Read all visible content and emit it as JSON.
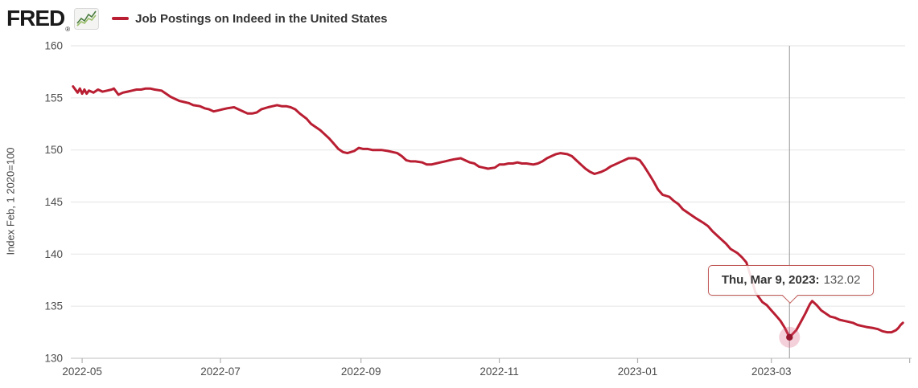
{
  "header": {
    "logo_text": "FRED",
    "registered_mark": "®",
    "legend": {
      "label": "Job Postings on Indeed in the United States"
    }
  },
  "y_axis": {
    "title": "Index Feb, 1 2020=100",
    "ticks": [
      130,
      135,
      140,
      145,
      150,
      155,
      160
    ]
  },
  "x_axis": {
    "ticks": [
      {
        "label": "2022-05",
        "date": "2022-05-01"
      },
      {
        "label": "2022-07",
        "date": "2022-07-01"
      },
      {
        "label": "2022-09",
        "date": "2022-09-01"
      },
      {
        "label": "2022-11",
        "date": "2022-11-01"
      },
      {
        "label": "2023-01",
        "date": "2023-01-01"
      },
      {
        "label": "2023-03",
        "date": "2023-03-01"
      },
      {
        "label": "",
        "date": "2023-05-01"
      }
    ]
  },
  "tooltip": {
    "date_label": "Thu, Mar 9, 2023:",
    "value": "132.02",
    "date": "2023-03-09"
  },
  "colors": {
    "line": "#b91e32",
    "dot": "#96152c",
    "halo": "rgba(214,88,122,0.28)",
    "grid": "#e8e8e8",
    "axis_line": "#cccccc",
    "tick": "#b0b0b0",
    "crosshair": "#a8a8a8",
    "tick_text": "#4d4d4d",
    "tooltip_border": "#c05a58"
  },
  "chart_data": {
    "type": "line",
    "title": "Job Postings on Indeed in the United States",
    "xlabel": "",
    "ylabel": "Index Feb, 1 2020=100",
    "ylim": [
      130,
      160
    ],
    "x_start": "2022-04-26",
    "x_end": "2023-04-29",
    "grid": true,
    "legend_position": "top-left",
    "marked_point": {
      "date": "2023-03-09",
      "value": 132.02
    },
    "series_name": "Job Postings on Indeed in the United States",
    "points": [
      [
        "2022-04-27",
        156.1
      ],
      [
        "2022-04-29",
        155.5
      ],
      [
        "2022-04-30",
        155.9
      ],
      [
        "2022-05-01",
        155.4
      ],
      [
        "2022-05-02",
        155.8
      ],
      [
        "2022-05-03",
        155.4
      ],
      [
        "2022-05-04",
        155.7
      ],
      [
        "2022-05-06",
        155.5
      ],
      [
        "2022-05-08",
        155.8
      ],
      [
        "2022-05-10",
        155.6
      ],
      [
        "2022-05-12",
        155.7
      ],
      [
        "2022-05-14",
        155.8
      ],
      [
        "2022-05-15",
        155.9
      ],
      [
        "2022-05-17",
        155.3
      ],
      [
        "2022-05-19",
        155.5
      ],
      [
        "2022-05-21",
        155.6
      ],
      [
        "2022-05-23",
        155.7
      ],
      [
        "2022-05-25",
        155.8
      ],
      [
        "2022-05-27",
        155.8
      ],
      [
        "2022-05-29",
        155.9
      ],
      [
        "2022-05-31",
        155.9
      ],
      [
        "2022-06-02",
        155.8
      ],
      [
        "2022-06-05",
        155.7
      ],
      [
        "2022-06-07",
        155.4
      ],
      [
        "2022-06-09",
        155.1
      ],
      [
        "2022-06-11",
        154.9
      ],
      [
        "2022-06-13",
        154.7
      ],
      [
        "2022-06-15",
        154.6
      ],
      [
        "2022-06-17",
        154.5
      ],
      [
        "2022-06-19",
        154.3
      ],
      [
        "2022-06-22",
        154.2
      ],
      [
        "2022-06-24",
        154.0
      ],
      [
        "2022-06-26",
        153.9
      ],
      [
        "2022-06-28",
        153.7
      ],
      [
        "2022-06-30",
        153.8
      ],
      [
        "2022-07-02",
        153.9
      ],
      [
        "2022-07-04",
        154.0
      ],
      [
        "2022-07-07",
        154.1
      ],
      [
        "2022-07-09",
        153.9
      ],
      [
        "2022-07-11",
        153.7
      ],
      [
        "2022-07-13",
        153.5
      ],
      [
        "2022-07-15",
        153.5
      ],
      [
        "2022-07-17",
        153.6
      ],
      [
        "2022-07-19",
        153.9
      ],
      [
        "2022-07-22",
        154.1
      ],
      [
        "2022-07-24",
        154.2
      ],
      [
        "2022-07-26",
        154.3
      ],
      [
        "2022-07-28",
        154.2
      ],
      [
        "2022-07-30",
        154.2
      ],
      [
        "2022-08-01",
        154.1
      ],
      [
        "2022-08-03",
        153.9
      ],
      [
        "2022-08-05",
        153.5
      ],
      [
        "2022-08-08",
        153.0
      ],
      [
        "2022-08-10",
        152.5
      ],
      [
        "2022-08-12",
        152.2
      ],
      [
        "2022-08-14",
        151.9
      ],
      [
        "2022-08-16",
        151.5
      ],
      [
        "2022-08-18",
        151.1
      ],
      [
        "2022-08-20",
        150.6
      ],
      [
        "2022-08-22",
        150.1
      ],
      [
        "2022-08-24",
        149.8
      ],
      [
        "2022-08-26",
        149.7
      ],
      [
        "2022-08-29",
        149.9
      ],
      [
        "2022-08-31",
        150.2
      ],
      [
        "2022-09-02",
        150.1
      ],
      [
        "2022-09-04",
        150.1
      ],
      [
        "2022-09-06",
        150.0
      ],
      [
        "2022-09-08",
        150.0
      ],
      [
        "2022-09-10",
        150.0
      ],
      [
        "2022-09-13",
        149.9
      ],
      [
        "2022-09-15",
        149.8
      ],
      [
        "2022-09-17",
        149.7
      ],
      [
        "2022-09-19",
        149.4
      ],
      [
        "2022-09-21",
        149.0
      ],
      [
        "2022-09-23",
        148.9
      ],
      [
        "2022-09-25",
        148.9
      ],
      [
        "2022-09-28",
        148.8
      ],
      [
        "2022-09-30",
        148.6
      ],
      [
        "2022-10-02",
        148.6
      ],
      [
        "2022-10-04",
        148.7
      ],
      [
        "2022-10-06",
        148.8
      ],
      [
        "2022-10-08",
        148.9
      ],
      [
        "2022-10-10",
        149.0
      ],
      [
        "2022-10-12",
        149.1
      ],
      [
        "2022-10-15",
        149.2
      ],
      [
        "2022-10-17",
        149.0
      ],
      [
        "2022-10-19",
        148.8
      ],
      [
        "2022-10-21",
        148.7
      ],
      [
        "2022-10-23",
        148.4
      ],
      [
        "2022-10-25",
        148.3
      ],
      [
        "2022-10-27",
        148.2
      ],
      [
        "2022-10-30",
        148.3
      ],
      [
        "2022-11-01",
        148.6
      ],
      [
        "2022-11-03",
        148.6
      ],
      [
        "2022-11-05",
        148.7
      ],
      [
        "2022-11-07",
        148.7
      ],
      [
        "2022-11-09",
        148.8
      ],
      [
        "2022-11-11",
        148.7
      ],
      [
        "2022-11-13",
        148.7
      ],
      [
        "2022-11-16",
        148.6
      ],
      [
        "2022-11-18",
        148.7
      ],
      [
        "2022-11-20",
        148.9
      ],
      [
        "2022-11-22",
        149.2
      ],
      [
        "2022-11-24",
        149.4
      ],
      [
        "2022-11-26",
        149.6
      ],
      [
        "2022-11-28",
        149.7
      ],
      [
        "2022-12-01",
        149.6
      ],
      [
        "2022-12-03",
        149.4
      ],
      [
        "2022-12-05",
        149.0
      ],
      [
        "2022-12-07",
        148.6
      ],
      [
        "2022-12-09",
        148.2
      ],
      [
        "2022-12-11",
        147.9
      ],
      [
        "2022-12-13",
        147.7
      ],
      [
        "2022-12-16",
        147.9
      ],
      [
        "2022-12-18",
        148.1
      ],
      [
        "2022-12-20",
        148.4
      ],
      [
        "2022-12-22",
        148.6
      ],
      [
        "2022-12-24",
        148.8
      ],
      [
        "2022-12-26",
        149.0
      ],
      [
        "2022-12-28",
        149.2
      ],
      [
        "2022-12-31",
        149.2
      ],
      [
        "2023-01-02",
        149.0
      ],
      [
        "2023-01-04",
        148.4
      ],
      [
        "2023-01-06",
        147.7
      ],
      [
        "2023-01-08",
        147.0
      ],
      [
        "2023-01-10",
        146.2
      ],
      [
        "2023-01-12",
        145.7
      ],
      [
        "2023-01-15",
        145.5
      ],
      [
        "2023-01-17",
        145.1
      ],
      [
        "2023-01-19",
        144.8
      ],
      [
        "2023-01-21",
        144.3
      ],
      [
        "2023-01-23",
        144.0
      ],
      [
        "2023-01-25",
        143.7
      ],
      [
        "2023-01-27",
        143.4
      ],
      [
        "2023-01-30",
        143.0
      ],
      [
        "2023-02-01",
        142.7
      ],
      [
        "2023-02-03",
        142.2
      ],
      [
        "2023-02-05",
        141.8
      ],
      [
        "2023-02-07",
        141.4
      ],
      [
        "2023-02-09",
        141.0
      ],
      [
        "2023-02-11",
        140.5
      ],
      [
        "2023-02-14",
        140.1
      ],
      [
        "2023-02-16",
        139.7
      ],
      [
        "2023-02-18",
        139.2
      ],
      [
        "2023-02-20",
        137.8
      ],
      [
        "2023-02-22",
        136.3
      ],
      [
        "2023-02-25",
        135.4
      ],
      [
        "2023-02-27",
        135.1
      ],
      [
        "2023-03-01",
        134.6
      ],
      [
        "2023-03-03",
        134.1
      ],
      [
        "2023-03-05",
        133.6
      ],
      [
        "2023-03-07",
        132.9
      ],
      [
        "2023-03-09",
        132.02
      ],
      [
        "2023-03-12",
        132.7
      ],
      [
        "2023-03-14",
        133.5
      ],
      [
        "2023-03-16",
        134.3
      ],
      [
        "2023-03-18",
        135.2
      ],
      [
        "2023-03-19",
        135.5
      ],
      [
        "2023-03-21",
        135.1
      ],
      [
        "2023-03-23",
        134.6
      ],
      [
        "2023-03-25",
        134.3
      ],
      [
        "2023-03-27",
        134.0
      ],
      [
        "2023-03-29",
        133.9
      ],
      [
        "2023-03-31",
        133.7
      ],
      [
        "2023-04-02",
        133.6
      ],
      [
        "2023-04-04",
        133.5
      ],
      [
        "2023-04-06",
        133.4
      ],
      [
        "2023-04-08",
        133.2
      ],
      [
        "2023-04-10",
        133.1
      ],
      [
        "2023-04-12",
        133.0
      ],
      [
        "2023-04-15",
        132.9
      ],
      [
        "2023-04-17",
        132.8
      ],
      [
        "2023-04-19",
        132.6
      ],
      [
        "2023-04-21",
        132.5
      ],
      [
        "2023-04-23",
        132.5
      ],
      [
        "2023-04-25",
        132.7
      ],
      [
        "2023-04-26",
        132.9
      ],
      [
        "2023-04-27",
        133.2
      ],
      [
        "2023-04-28",
        133.4
      ]
    ]
  }
}
